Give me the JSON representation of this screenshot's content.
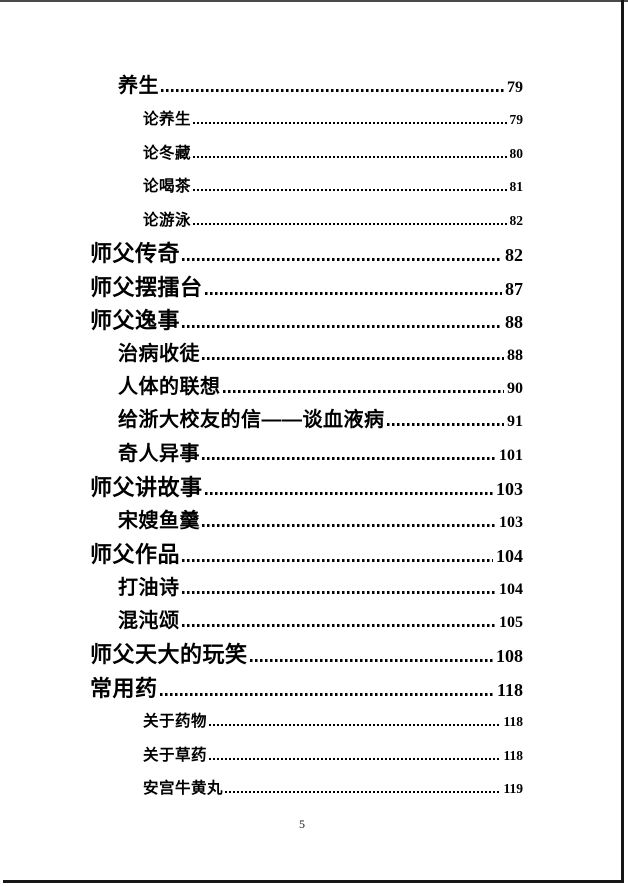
{
  "page": {
    "number": "5"
  },
  "colors": {
    "ink": "#000000",
    "scan_edge_top": "#4a4a4a",
    "scan_edge_line": "#161616",
    "background": "#ffffff"
  },
  "toc": {
    "entries": [
      {
        "label": "养生",
        "page": "79",
        "level": 1
      },
      {
        "label": "论养生",
        "page": "79",
        "level": 2
      },
      {
        "label": "论冬藏",
        "page": "80",
        "level": 2
      },
      {
        "label": "论喝茶",
        "page": "81",
        "level": 2
      },
      {
        "label": "论游泳",
        "page": "82",
        "level": 2
      },
      {
        "label": "师父传奇",
        "page": "82",
        "level": 0
      },
      {
        "label": "师父摆擂台",
        "page": "87",
        "level": 0
      },
      {
        "label": "师父逸事",
        "page": "88",
        "level": 0
      },
      {
        "label": "治病收徒",
        "page": "88",
        "level": 1
      },
      {
        "label": "人体的联想",
        "page": "90",
        "level": 1
      },
      {
        "label": "给浙大校友的信——谈血液病",
        "page": "91",
        "level": 1
      },
      {
        "label": "奇人异事",
        "page": "101",
        "level": 1
      },
      {
        "label": "师父讲故事",
        "page": "103",
        "level": 0
      },
      {
        "label": "宋嫂鱼羹",
        "page": "103",
        "level": 1
      },
      {
        "label": "师父作品",
        "page": "104",
        "level": 0
      },
      {
        "label": "打油诗",
        "page": "104",
        "level": 1
      },
      {
        "label": "混沌颂",
        "page": "105",
        "level": 1
      },
      {
        "label": "师父天大的玩笑",
        "page": "108",
        "level": 0
      },
      {
        "label": "常用药",
        "page": "118",
        "level": 0
      },
      {
        "label": "关于药物",
        "page": "118",
        "level": 2
      },
      {
        "label": "关于草药",
        "page": "118",
        "level": 2
      },
      {
        "label": "安宫牛黄丸",
        "page": "119",
        "level": 2
      }
    ]
  }
}
